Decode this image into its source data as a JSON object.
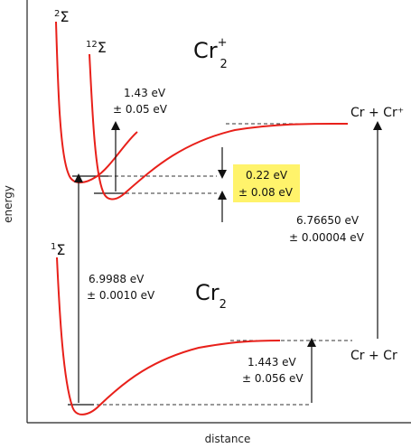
{
  "axes": {
    "ylabel": "energy",
    "xlabel": "distance"
  },
  "curves": {
    "sigma2": {
      "sup": "2",
      "symbol": "Σ"
    },
    "sigma12": {
      "sup": "12",
      "symbol": "Σ"
    },
    "sigma1": {
      "sup": "1",
      "symbol": "Σ"
    }
  },
  "species": {
    "cation": {
      "base": "Cr",
      "sub": "2",
      "sup": "+"
    },
    "neutral": {
      "base": "Cr",
      "sub": "2"
    }
  },
  "asymptotes": {
    "upper": "Cr + Cr⁺",
    "lower": "Cr + Cr"
  },
  "energies": {
    "e_143": {
      "value": "1.43 eV",
      "error": "± 0.05 eV"
    },
    "e_022": {
      "value": "0.22 eV",
      "error": "± 0.08 eV"
    },
    "e_676": {
      "value": "6.76650 eV",
      "error": "± 0.00004 eV"
    },
    "e_699": {
      "value": "6.9988 eV",
      "error": "± 0.0010 eV"
    },
    "e_1443": {
      "value": "1.443 eV",
      "error": "± 0.056 eV"
    }
  },
  "colors": {
    "curve": "#e8201a",
    "highlight": "#fff36b",
    "line": "#111111"
  }
}
